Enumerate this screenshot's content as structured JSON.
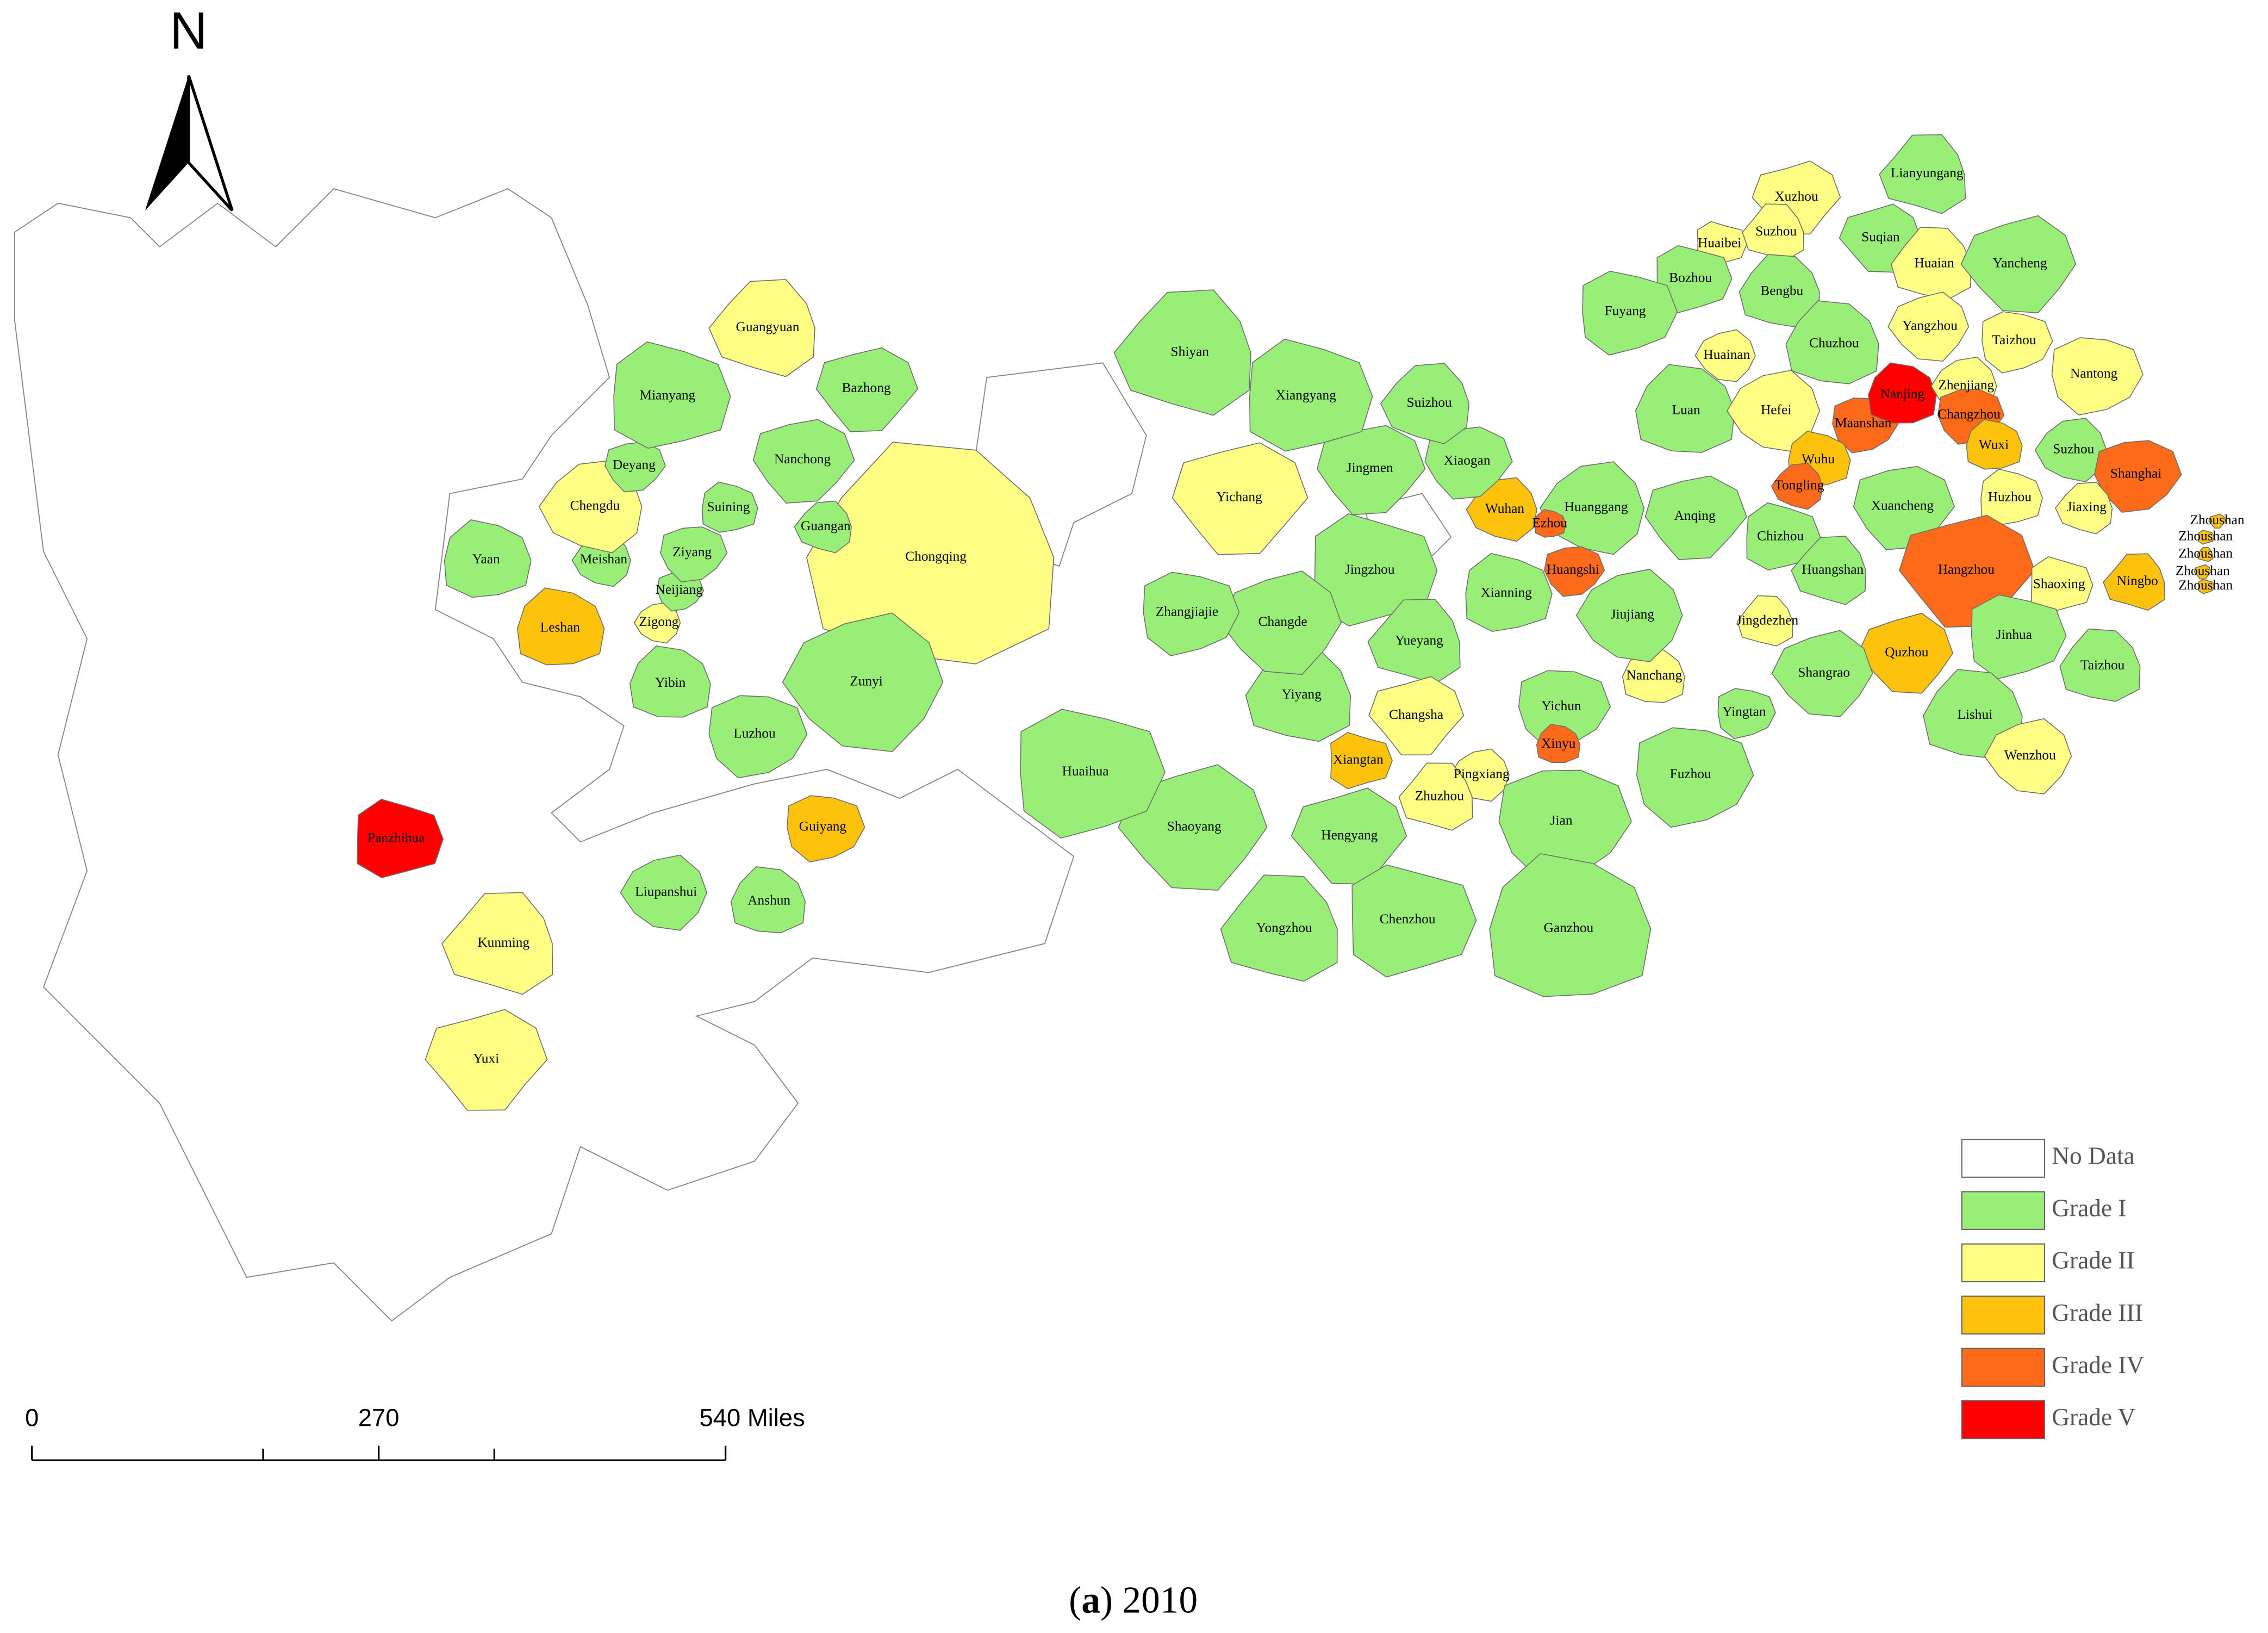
{
  "north": "N",
  "cities": [
    {
      "name": "Lianyungang",
      "color": "#98ee77"
    },
    {
      "name": "Xuzhou",
      "color": "#fefe84"
    },
    {
      "name": "Huaibei",
      "color": "#fefe84"
    },
    {
      "name": "Suzhou",
      "color": "#fefe84"
    },
    {
      "name": "Suqian",
      "color": "#98ee77"
    },
    {
      "name": "Bozhou",
      "color": "#98ee77"
    },
    {
      "name": "Huaian",
      "color": "#fefe84"
    },
    {
      "name": "Yancheng",
      "color": "#98ee77"
    },
    {
      "name": "Fuyang",
      "color": "#98ee77"
    },
    {
      "name": "Bengbu",
      "color": "#98ee77"
    },
    {
      "name": "Yangzhou",
      "color": "#fefe84"
    },
    {
      "name": "Taizhou",
      "color": "#fefe84"
    },
    {
      "name": "Chuzhou",
      "color": "#98ee77"
    },
    {
      "name": "Huainan",
      "color": "#fefe84"
    },
    {
      "name": "Nantong",
      "color": "#fefe84"
    },
    {
      "name": "Luan",
      "color": "#98ee77"
    },
    {
      "name": "Hefei",
      "color": "#fefe84"
    },
    {
      "name": "Maanshan",
      "color": "#fd6a1a"
    },
    {
      "name": "Nanjing",
      "color": "#ff0000"
    },
    {
      "name": "Zhenjiang",
      "color": "#fefe84"
    },
    {
      "name": "Changzhou",
      "color": "#fd6a1a"
    },
    {
      "name": "Wuxi",
      "color": "#fdc20c"
    },
    {
      "name": "Suzhou",
      "color": "#98ee77"
    },
    {
      "name": "Shanghai",
      "color": "#fd6a1a"
    },
    {
      "name": "Wuhu",
      "color": "#fdc20c"
    },
    {
      "name": "Tongling",
      "color": "#fd6a1a"
    },
    {
      "name": "Xuancheng",
      "color": "#98ee77"
    },
    {
      "name": "Huzhou",
      "color": "#fefe84"
    },
    {
      "name": "Jiaxing",
      "color": "#fefe84"
    },
    {
      "name": "Anqing",
      "color": "#98ee77"
    },
    {
      "name": "Chizhou",
      "color": "#98ee77"
    },
    {
      "name": "Huangshan",
      "color": "#98ee77"
    },
    {
      "name": "Hangzhou",
      "color": "#fd6a1a"
    },
    {
      "name": "Shaoxing",
      "color": "#fefe84"
    },
    {
      "name": "Ningbo",
      "color": "#fdc20c"
    },
    {
      "name": "Zhoushan",
      "color": "#fdc20c"
    },
    {
      "name": "Zhoushan",
      "color": "#fdc20c"
    },
    {
      "name": "Zhoushan",
      "color": "#fdc20c"
    },
    {
      "name": "Zhoushan",
      "color": "#fdc20c"
    },
    {
      "name": "Zhoushan",
      "color": "#fdc20c"
    },
    {
      "name": "Jingdezhen",
      "color": "#fefe84"
    },
    {
      "name": "Quzhou",
      "color": "#fdc20c"
    },
    {
      "name": "Jinhua",
      "color": "#98ee77"
    },
    {
      "name": "Taizhou",
      "color": "#98ee77"
    },
    {
      "name": "Shangrao",
      "color": "#98ee77"
    },
    {
      "name": "Yingtan",
      "color": "#98ee77"
    },
    {
      "name": "Lishui",
      "color": "#98ee77"
    },
    {
      "name": "Wenzhou",
      "color": "#fefe84"
    },
    {
      "name": "Fuzhou",
      "color": "#98ee77"
    },
    {
      "name": "Nanchang",
      "color": "#fefe84"
    },
    {
      "name": "Jiujiang",
      "color": "#98ee77"
    },
    {
      "name": "Yichun",
      "color": "#98ee77"
    },
    {
      "name": "Xinyu",
      "color": "#fd6a1a"
    },
    {
      "name": "Pingxiang",
      "color": "#fefe84"
    },
    {
      "name": "Jian",
      "color": "#98ee77"
    },
    {
      "name": "Ganzhou",
      "color": "#98ee77"
    },
    {
      "name": "Huanggang",
      "color": "#98ee77"
    },
    {
      "name": "Huangshi",
      "color": "#fd6a1a"
    },
    {
      "name": "Ezhou",
      "color": "#fd6a1a"
    },
    {
      "name": "Wuhan",
      "color": "#fdc20c"
    },
    {
      "name": "Xiaogan",
      "color": "#98ee77"
    },
    {
      "name": "Xianning",
      "color": "#98ee77"
    },
    {
      "name": "Suizhou",
      "color": "#98ee77"
    },
    {
      "name": "Jingmen",
      "color": "#98ee77"
    },
    {
      "name": "Xiangyang",
      "color": "#98ee77"
    },
    {
      "name": "Shiyan",
      "color": "#98ee77"
    },
    {
      "name": "Yichang",
      "color": "#fefe84"
    },
    {
      "name": "Jingzhou",
      "color": "#98ee77"
    },
    {
      "name": "Yueyang",
      "color": "#98ee77"
    },
    {
      "name": "Changsha",
      "color": "#fefe84"
    },
    {
      "name": "Xiangtan",
      "color": "#fdc20c"
    },
    {
      "name": "Zhuzhou",
      "color": "#fefe84"
    },
    {
      "name": "Hengyang",
      "color": "#98ee77"
    },
    {
      "name": "Chenzhou",
      "color": "#98ee77"
    },
    {
      "name": "Yongzhou",
      "color": "#98ee77"
    },
    {
      "name": "Shaoyang",
      "color": "#98ee77"
    },
    {
      "name": "Huaihua",
      "color": "#98ee77"
    },
    {
      "name": "Yiyang",
      "color": "#98ee77"
    },
    {
      "name": "Changde",
      "color": "#98ee77"
    },
    {
      "name": "Zhangjiajie",
      "color": "#98ee77"
    },
    {
      "name": "Chongqing",
      "color": "#fefe84"
    },
    {
      "name": "Zunyi",
      "color": "#98ee77"
    },
    {
      "name": "Guiyang",
      "color": "#fdc20c"
    },
    {
      "name": "Anshun",
      "color": "#98ee77"
    },
    {
      "name": "Liupanshui",
      "color": "#98ee77"
    },
    {
      "name": "Luzhou",
      "color": "#98ee77"
    },
    {
      "name": "Yibin",
      "color": "#98ee77"
    },
    {
      "name": "Zigong",
      "color": "#fefe84"
    },
    {
      "name": "Neijiang",
      "color": "#98ee77"
    },
    {
      "name": "Leshan",
      "color": "#fdc20c"
    },
    {
      "name": "Meishan",
      "color": "#98ee77"
    },
    {
      "name": "Ziyang",
      "color": "#98ee77"
    },
    {
      "name": "Yaan",
      "color": "#98ee77"
    },
    {
      "name": "Chengdu",
      "color": "#fefe84"
    },
    {
      "name": "Deyang",
      "color": "#98ee77"
    },
    {
      "name": "Suining",
      "color": "#98ee77"
    },
    {
      "name": "Guangan",
      "color": "#98ee77"
    },
    {
      "name": "Nanchong",
      "color": "#98ee77"
    },
    {
      "name": "Mianyang",
      "color": "#98ee77"
    },
    {
      "name": "Guangyuan",
      "color": "#fefe84"
    },
    {
      "name": "Bazhong",
      "color": "#98ee77"
    },
    {
      "name": "Panzhihua",
      "color": "#ff0000"
    },
    {
      "name": "Kunming",
      "color": "#fefe84"
    },
    {
      "name": "Yuxi",
      "color": "#fefe84"
    }
  ],
  "legend": [
    {
      "label": "No Data",
      "color": "#ffffff"
    },
    {
      "label": "Grade I",
      "color": "#98ee77"
    },
    {
      "label": "Grade II",
      "color": "#fefe84"
    },
    {
      "label": "Grade III",
      "color": "#fdc20c"
    },
    {
      "label": "Grade IV",
      "color": "#fd6a1a"
    },
    {
      "label": "Grade V",
      "color": "#ff0000"
    }
  ],
  "scale_bar": {
    "xlim": [
      0,
      540
    ],
    "ticks": [
      0,
      270,
      {
        "value": 540,
        "label": "540 Miles"
      }
    ]
  },
  "caption": [
    "(",
    "a",
    ") 2010"
  ]
}
